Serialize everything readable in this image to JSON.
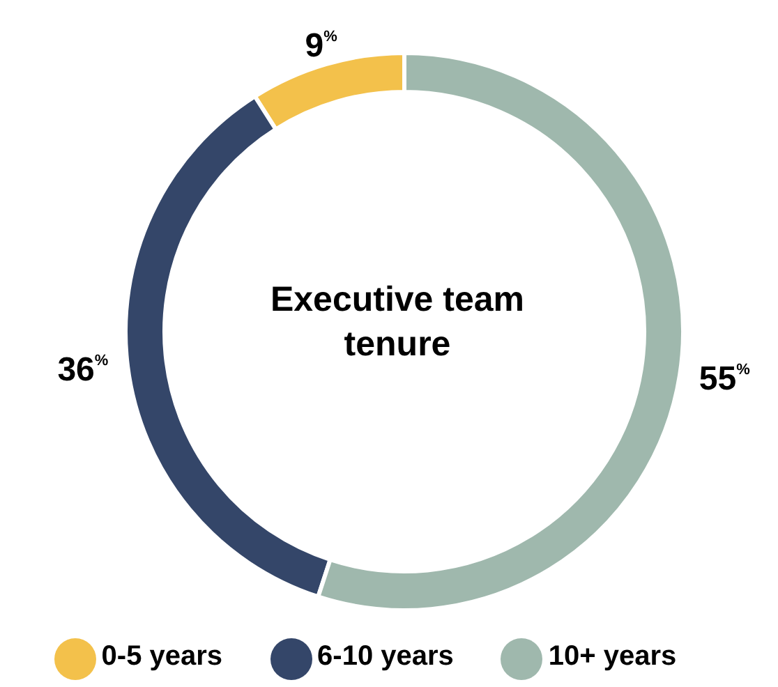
{
  "chart_data": {
    "type": "donut",
    "title": "Executive team tenure",
    "categories": [
      "0-5 years",
      "6-10 years",
      "10+ years"
    ],
    "values": [
      9,
      36,
      55
    ],
    "colors": [
      "#f3c14b",
      "#344669",
      "#9fb8ad"
    ],
    "value_labels": [
      "9$^{%}$",
      "36$^{%}$",
      "55$^{%}$"
    ],
    "legend": "bottom"
  }
}
